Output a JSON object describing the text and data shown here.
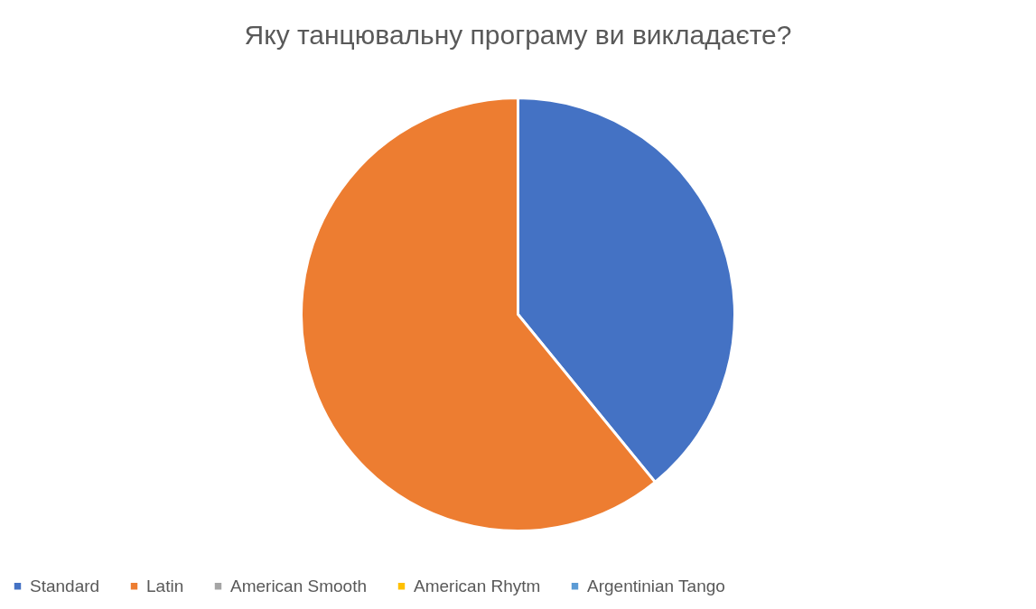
{
  "chart_data": {
    "type": "pie",
    "title": "Яку танцювальну програму ви викладаєте?",
    "categories": [
      "Standard",
      "Latin",
      "American Smooth",
      "American Rhytm",
      "Argentinian Tango"
    ],
    "values": [
      39.1,
      60.9,
      0,
      0,
      0
    ],
    "colors": [
      "#4472c4",
      "#ed7d31",
      "#a5a5a5",
      "#ffc000",
      "#5b9bd5"
    ],
    "legend": "bottom"
  }
}
